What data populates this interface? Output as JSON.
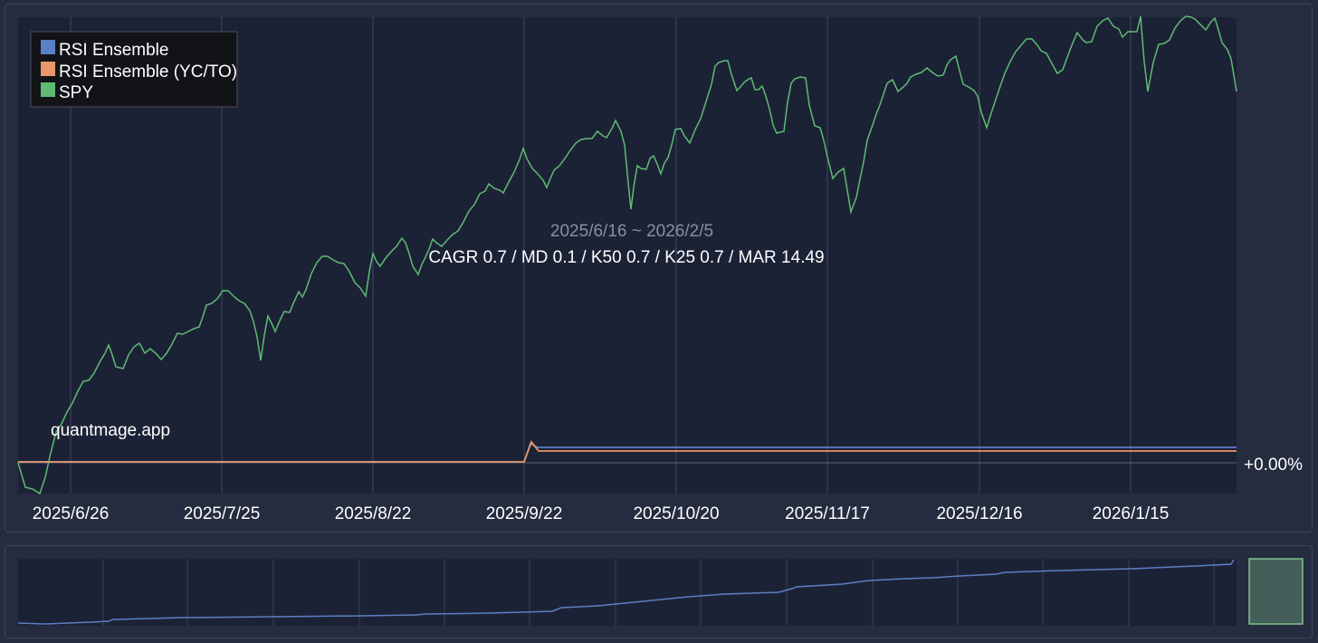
{
  "chart_data": {
    "type": "line",
    "period": "2025/6/16 ~ 2026/2/5",
    "stats": "CAGR 0.7 / MD 0.1 / K50 0.7 / K25 0.7 / MAR 14.49",
    "watermark": "quantmage.app",
    "baseline_label": "+0.00%",
    "legend_position": "top-left",
    "x_tick_labels": [
      "2025/6/26",
      "2025/7/25",
      "2025/8/22",
      "2025/9/22",
      "2025/10/20",
      "2025/11/17",
      "2025/12/16",
      "2026/1/15"
    ],
    "series": [
      {
        "name": "RSI Ensemble",
        "color": "#5b7fc4"
      },
      {
        "name": "RSI Ensemble (YC/TO)",
        "color": "#e8966a"
      },
      {
        "name": "SPY",
        "color": "#5fba73"
      }
    ],
    "nav_color": "#5b7fc4",
    "nav_window_color": "#7fc08a"
  }
}
